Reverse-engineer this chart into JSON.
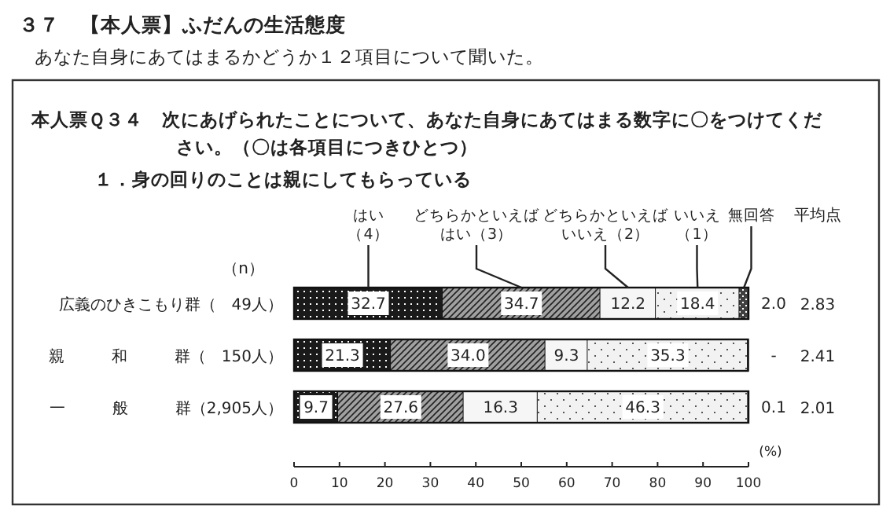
{
  "chart_data": {
    "type": "bar",
    "orientation": "horizontal",
    "stacked": true,
    "title": "３７　【本人票】ふだんの生活態度",
    "subtitle": "あなた自身にあてはまるかどうか１２項目について聞いた。",
    "categories": [
      "広義のひきこもり群（　49人）",
      "親　　　和　　　群（　150人）",
      "一　　　般　　　群（2,905人）"
    ],
    "series": [
      {
        "name": "はい（4）",
        "color": "#1a1a1a",
        "values": [
          32.7,
          21.3,
          9.7
        ],
        "value_labels": [
          "32.7",
          "21.3",
          "9.7"
        ]
      },
      {
        "name": "どちらかといえばはい（3）",
        "color": "#a0a0a0",
        "values": [
          34.7,
          34.0,
          27.6
        ],
        "value_labels": [
          "34.7",
          "34.0",
          "27.6"
        ]
      },
      {
        "name": "どちらかといえばいいえ（2）",
        "color": "#f6f6f6",
        "values": [
          12.2,
          9.3,
          16.3
        ],
        "value_labels": [
          "12.2",
          "9.3",
          "16.3"
        ]
      },
      {
        "name": "いいえ（1）",
        "color": "#f2f2f2",
        "values": [
          18.4,
          35.3,
          46.3
        ],
        "value_labels": [
          "18.4",
          "35.3",
          "46.3"
        ]
      },
      {
        "name": "無回答",
        "color": "#404040",
        "values": [
          2.0,
          null,
          0.1
        ],
        "value_labels": [
          "2.0",
          "-",
          "0.1"
        ]
      }
    ],
    "xlim": [
      0,
      100
    ],
    "xticks": [
      0,
      10,
      20,
      30,
      40,
      50,
      60,
      70,
      80,
      90,
      100
    ],
    "legend": "top",
    "grid": false,
    "annotations": [
      "本人票Ｑ３４　次にあげられたことについて、あなた自身にあてはまる数字に〇をつけてください。（〇は各項目につきひとつ）",
      "１．身の回りのことは親にしてもらっている",
      "（n）",
      "(%)",
      "平均点",
      "2.83",
      "2.41",
      "2.01"
    ]
  }
}
